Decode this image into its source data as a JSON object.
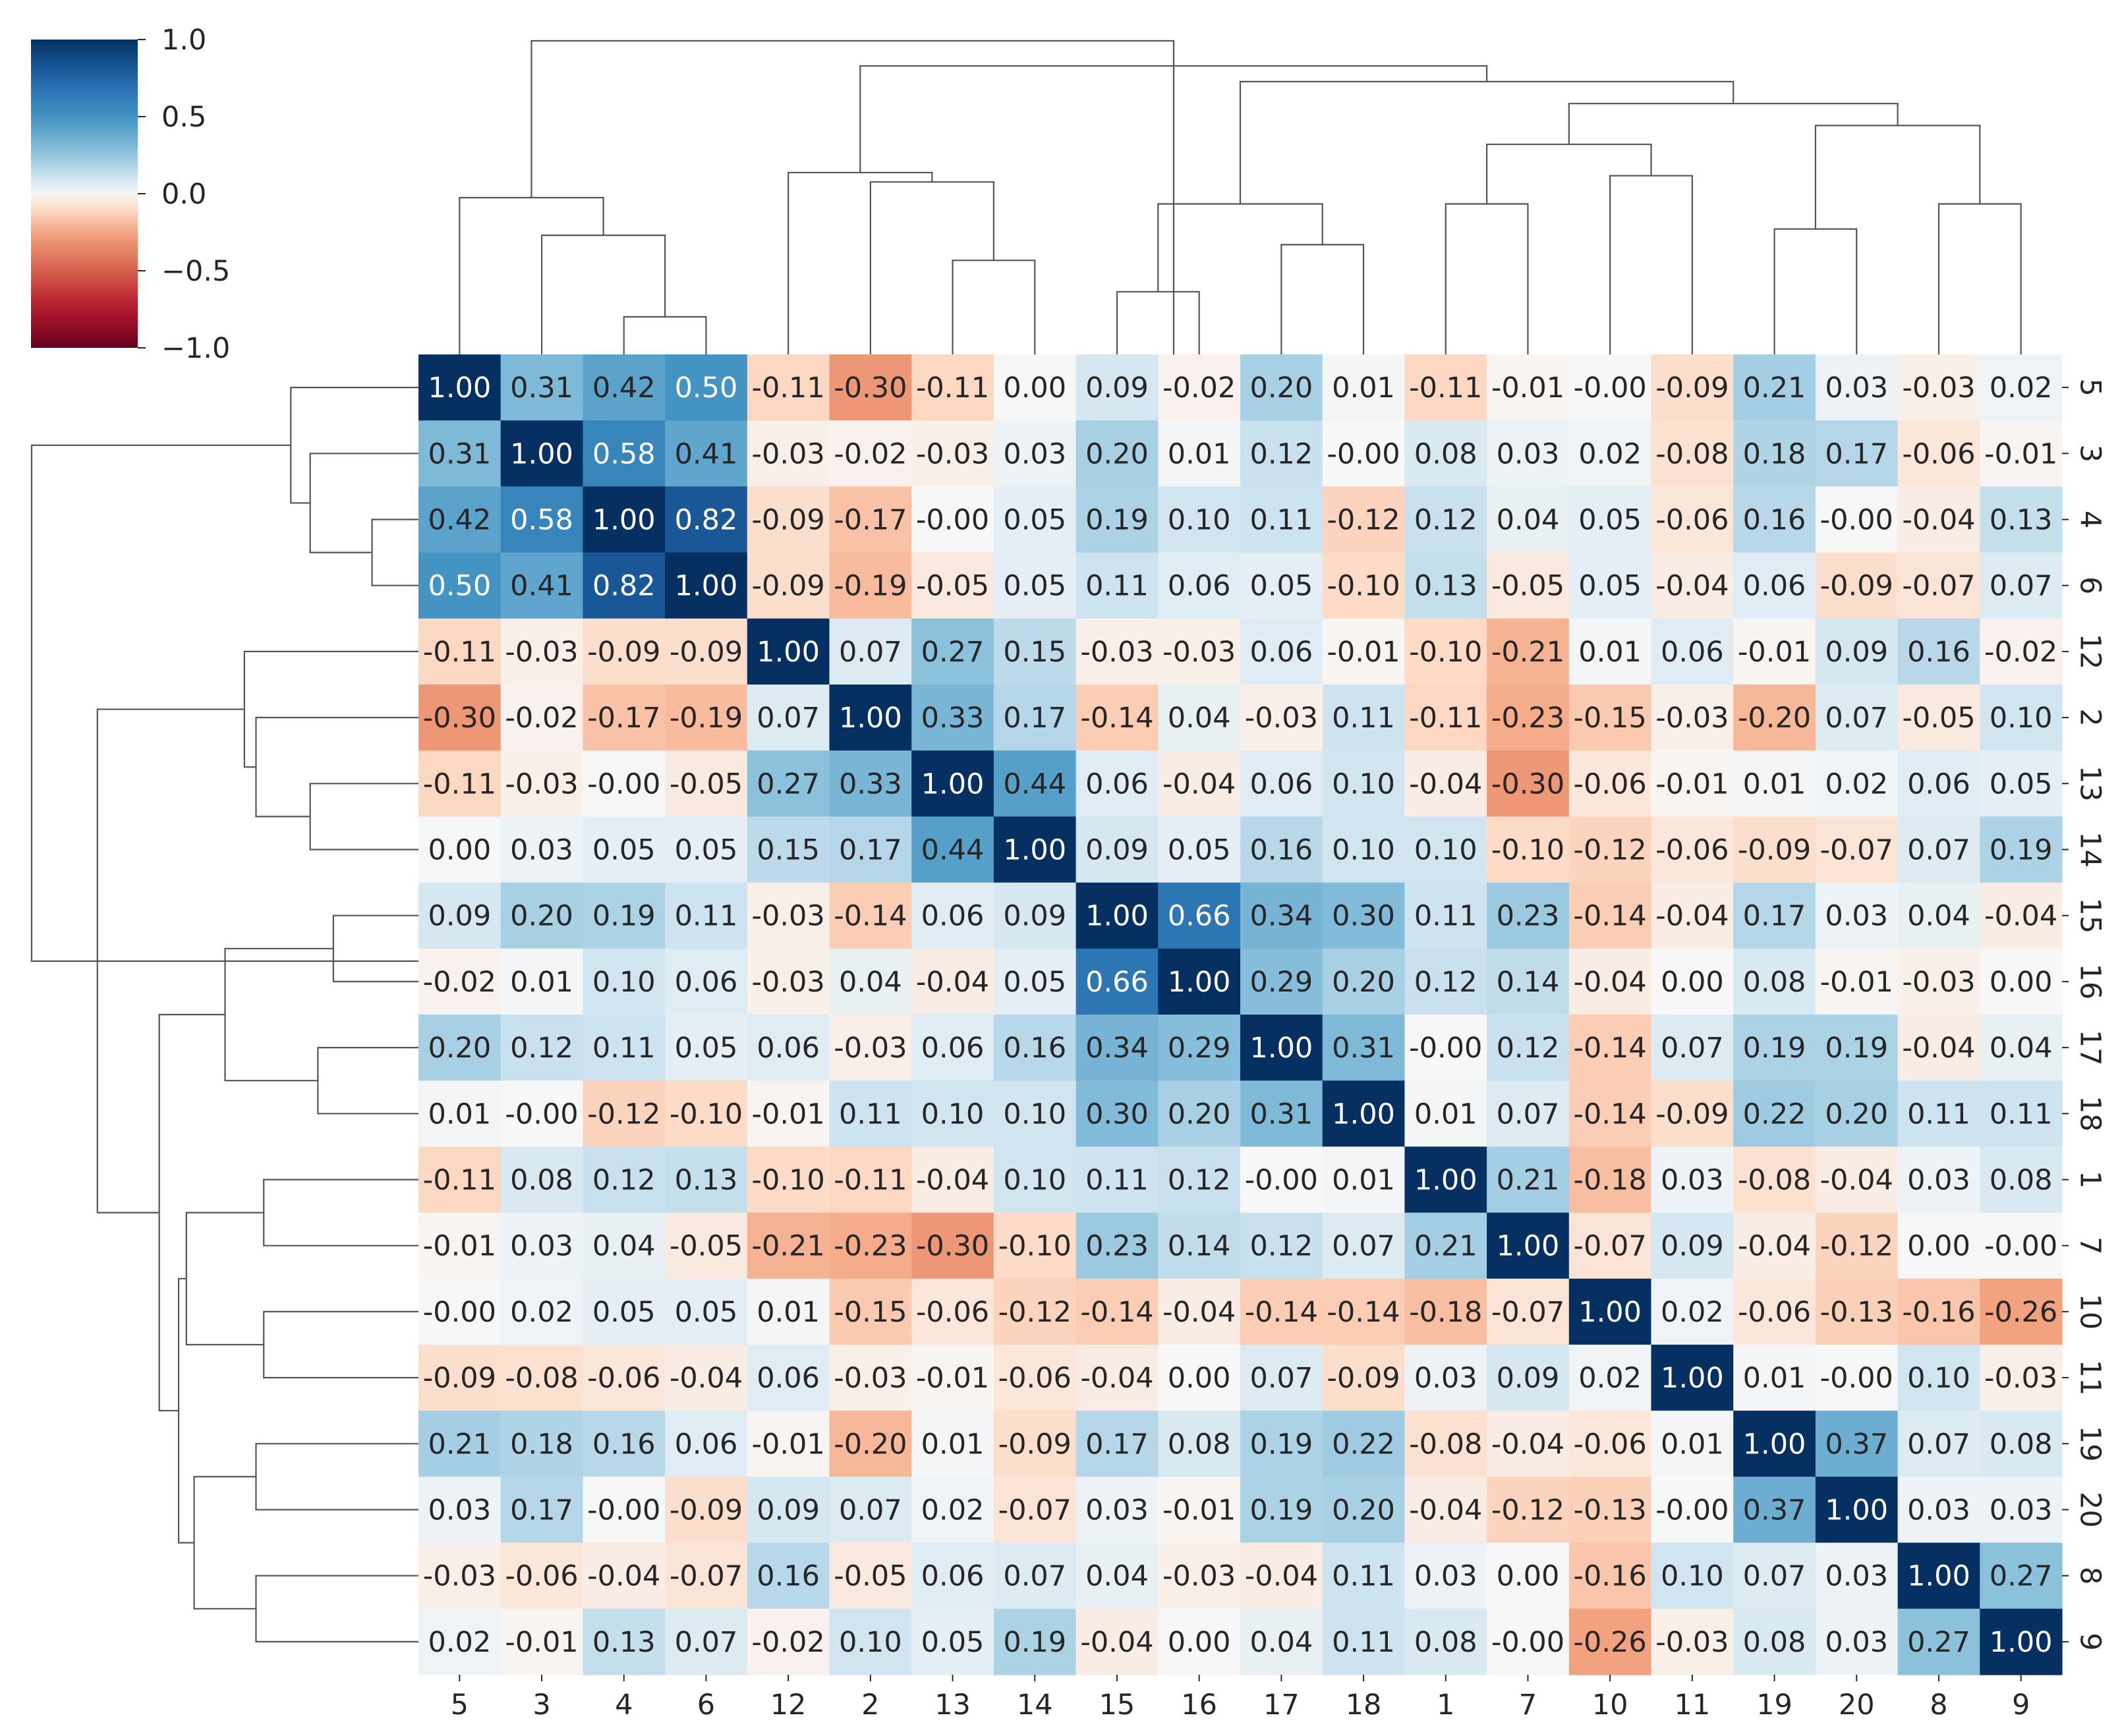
{
  "chart_data": {
    "type": "heatmap",
    "subtype": "clustermap",
    "title": "",
    "xlabel": "",
    "ylabel": "",
    "labels": [
      "5",
      "3",
      "4",
      "6",
      "12",
      "2",
      "13",
      "14",
      "15",
      "16",
      "17",
      "18",
      "1",
      "7",
      "10",
      "11",
      "19",
      "20",
      "8",
      "9"
    ],
    "matrix": [
      [
        1.0,
        0.31,
        0.42,
        0.5,
        -0.11,
        -0.3,
        -0.11,
        0.0,
        0.09,
        -0.02,
        0.2,
        0.01,
        -0.11,
        -0.01,
        -0.0,
        -0.09,
        0.21,
        0.03,
        -0.03,
        0.02
      ],
      [
        0.31,
        1.0,
        0.58,
        0.41,
        -0.03,
        -0.02,
        -0.03,
        0.03,
        0.2,
        0.01,
        0.12,
        -0.0,
        0.08,
        0.03,
        0.02,
        -0.08,
        0.18,
        0.17,
        -0.06,
        -0.01
      ],
      [
        0.42,
        0.58,
        1.0,
        0.82,
        -0.09,
        -0.17,
        -0.0,
        0.05,
        0.19,
        0.1,
        0.11,
        -0.12,
        0.12,
        0.04,
        0.05,
        -0.06,
        0.16,
        -0.0,
        -0.04,
        0.13
      ],
      [
        0.5,
        0.41,
        0.82,
        1.0,
        -0.09,
        -0.19,
        -0.05,
        0.05,
        0.11,
        0.06,
        0.05,
        -0.1,
        0.13,
        -0.05,
        0.05,
        -0.04,
        0.06,
        -0.09,
        -0.07,
        0.07
      ],
      [
        -0.11,
        -0.03,
        -0.09,
        -0.09,
        1.0,
        0.07,
        0.27,
        0.15,
        -0.03,
        -0.03,
        0.06,
        -0.01,
        -0.1,
        -0.21,
        0.01,
        0.06,
        -0.01,
        0.09,
        0.16,
        -0.02
      ],
      [
        -0.3,
        -0.02,
        -0.17,
        -0.19,
        0.07,
        1.0,
        0.33,
        0.17,
        -0.14,
        0.04,
        -0.03,
        0.11,
        -0.11,
        -0.23,
        -0.15,
        -0.03,
        -0.2,
        0.07,
        -0.05,
        0.1
      ],
      [
        -0.11,
        -0.03,
        -0.0,
        -0.05,
        0.27,
        0.33,
        1.0,
        0.44,
        0.06,
        -0.04,
        0.06,
        0.1,
        -0.04,
        -0.3,
        -0.06,
        -0.01,
        0.01,
        0.02,
        0.06,
        0.05
      ],
      [
        0.0,
        0.03,
        0.05,
        0.05,
        0.15,
        0.17,
        0.44,
        1.0,
        0.09,
        0.05,
        0.16,
        0.1,
        0.1,
        -0.1,
        -0.12,
        -0.06,
        -0.09,
        -0.07,
        0.07,
        0.19
      ],
      [
        0.09,
        0.2,
        0.19,
        0.11,
        -0.03,
        -0.14,
        0.06,
        0.09,
        1.0,
        0.66,
        0.34,
        0.3,
        0.11,
        0.23,
        -0.14,
        -0.04,
        0.17,
        0.03,
        0.04,
        -0.04
      ],
      [
        -0.02,
        0.01,
        0.1,
        0.06,
        -0.03,
        0.04,
        -0.04,
        0.05,
        0.66,
        1.0,
        0.29,
        0.2,
        0.12,
        0.14,
        -0.04,
        0.0,
        0.08,
        -0.01,
        -0.03,
        0.0
      ],
      [
        0.2,
        0.12,
        0.11,
        0.05,
        0.06,
        -0.03,
        0.06,
        0.16,
        0.34,
        0.29,
        1.0,
        0.31,
        -0.0,
        0.12,
        -0.14,
        0.07,
        0.19,
        0.19,
        -0.04,
        0.04
      ],
      [
        0.01,
        -0.0,
        -0.12,
        -0.1,
        -0.01,
        0.11,
        0.1,
        0.1,
        0.3,
        0.2,
        0.31,
        1.0,
        0.01,
        0.07,
        -0.14,
        -0.09,
        0.22,
        0.2,
        0.11,
        0.11
      ],
      [
        -0.11,
        0.08,
        0.12,
        0.13,
        -0.1,
        -0.11,
        -0.04,
        0.1,
        0.11,
        0.12,
        -0.0,
        0.01,
        1.0,
        0.21,
        -0.18,
        0.03,
        -0.08,
        -0.04,
        0.03,
        0.08
      ],
      [
        -0.01,
        0.03,
        0.04,
        -0.05,
        -0.21,
        -0.23,
        -0.3,
        -0.1,
        0.23,
        0.14,
        0.12,
        0.07,
        0.21,
        1.0,
        -0.07,
        0.09,
        -0.04,
        -0.12,
        0.0,
        -0.0
      ],
      [
        -0.0,
        0.02,
        0.05,
        0.05,
        0.01,
        -0.15,
        -0.06,
        -0.12,
        -0.14,
        -0.04,
        -0.14,
        -0.14,
        -0.18,
        -0.07,
        1.0,
        0.02,
        -0.06,
        -0.13,
        -0.16,
        -0.26
      ],
      [
        -0.09,
        -0.08,
        -0.06,
        -0.04,
        0.06,
        -0.03,
        -0.01,
        -0.06,
        -0.04,
        0.0,
        0.07,
        -0.09,
        0.03,
        0.09,
        0.02,
        1.0,
        0.01,
        -0.0,
        0.1,
        -0.03
      ],
      [
        0.21,
        0.18,
        0.16,
        0.06,
        -0.01,
        -0.2,
        0.01,
        -0.09,
        0.17,
        0.08,
        0.19,
        0.22,
        -0.08,
        -0.04,
        -0.06,
        0.01,
        1.0,
        0.37,
        0.07,
        0.08
      ],
      [
        0.03,
        0.17,
        -0.0,
        -0.09,
        0.09,
        0.07,
        0.02,
        -0.07,
        0.03,
        -0.01,
        0.19,
        0.2,
        -0.04,
        -0.12,
        -0.13,
        -0.0,
        0.37,
        1.0,
        0.03,
        0.03
      ],
      [
        -0.03,
        -0.06,
        -0.04,
        -0.07,
        0.16,
        -0.05,
        0.06,
        0.07,
        0.04,
        -0.03,
        -0.04,
        0.11,
        0.03,
        0.0,
        -0.16,
        0.1,
        0.07,
        0.03,
        1.0,
        0.27
      ],
      [
        0.02,
        -0.01,
        0.13,
        0.07,
        -0.02,
        0.1,
        0.05,
        0.19,
        -0.04,
        0.0,
        0.04,
        0.11,
        0.08,
        -0.0,
        -0.26,
        -0.03,
        0.08,
        0.03,
        0.27,
        1.0
      ]
    ],
    "colorbar": {
      "colormap": "RdBu_r",
      "vmin": -1.0,
      "vmax": 1.0,
      "ticks": [
        1.0,
        0.5,
        0.0,
        -0.5,
        -1.0
      ],
      "tick_labels": [
        "1.0",
        "0.5",
        "0.0",
        "−0.5",
        "−1.0"
      ]
    },
    "annotation_format": "2 decimals",
    "dendrogram_links": [
      [
        0,
        1,
        "5"
      ],
      [
        1,
        2,
        "3"
      ],
      [
        2,
        3,
        "4"
      ],
      [
        3,
        4,
        "6"
      ],
      [
        4,
        5,
        "12"
      ],
      [
        5,
        6,
        "2"
      ],
      [
        6,
        7,
        "13"
      ],
      [
        7,
        8,
        "14"
      ],
      [
        8,
        9,
        "15"
      ],
      [
        9,
        10,
        "16"
      ],
      [
        10,
        11,
        "17"
      ],
      [
        11,
        12,
        "18"
      ],
      [
        12,
        13,
        "1"
      ],
      [
        13,
        14,
        "7"
      ],
      [
        14,
        15,
        "10"
      ],
      [
        15,
        16,
        "11"
      ],
      [
        16,
        17,
        "19"
      ],
      [
        17,
        18,
        "20"
      ],
      [
        18,
        19,
        "8"
      ],
      [
        19,
        20,
        "9"
      ]
    ]
  }
}
